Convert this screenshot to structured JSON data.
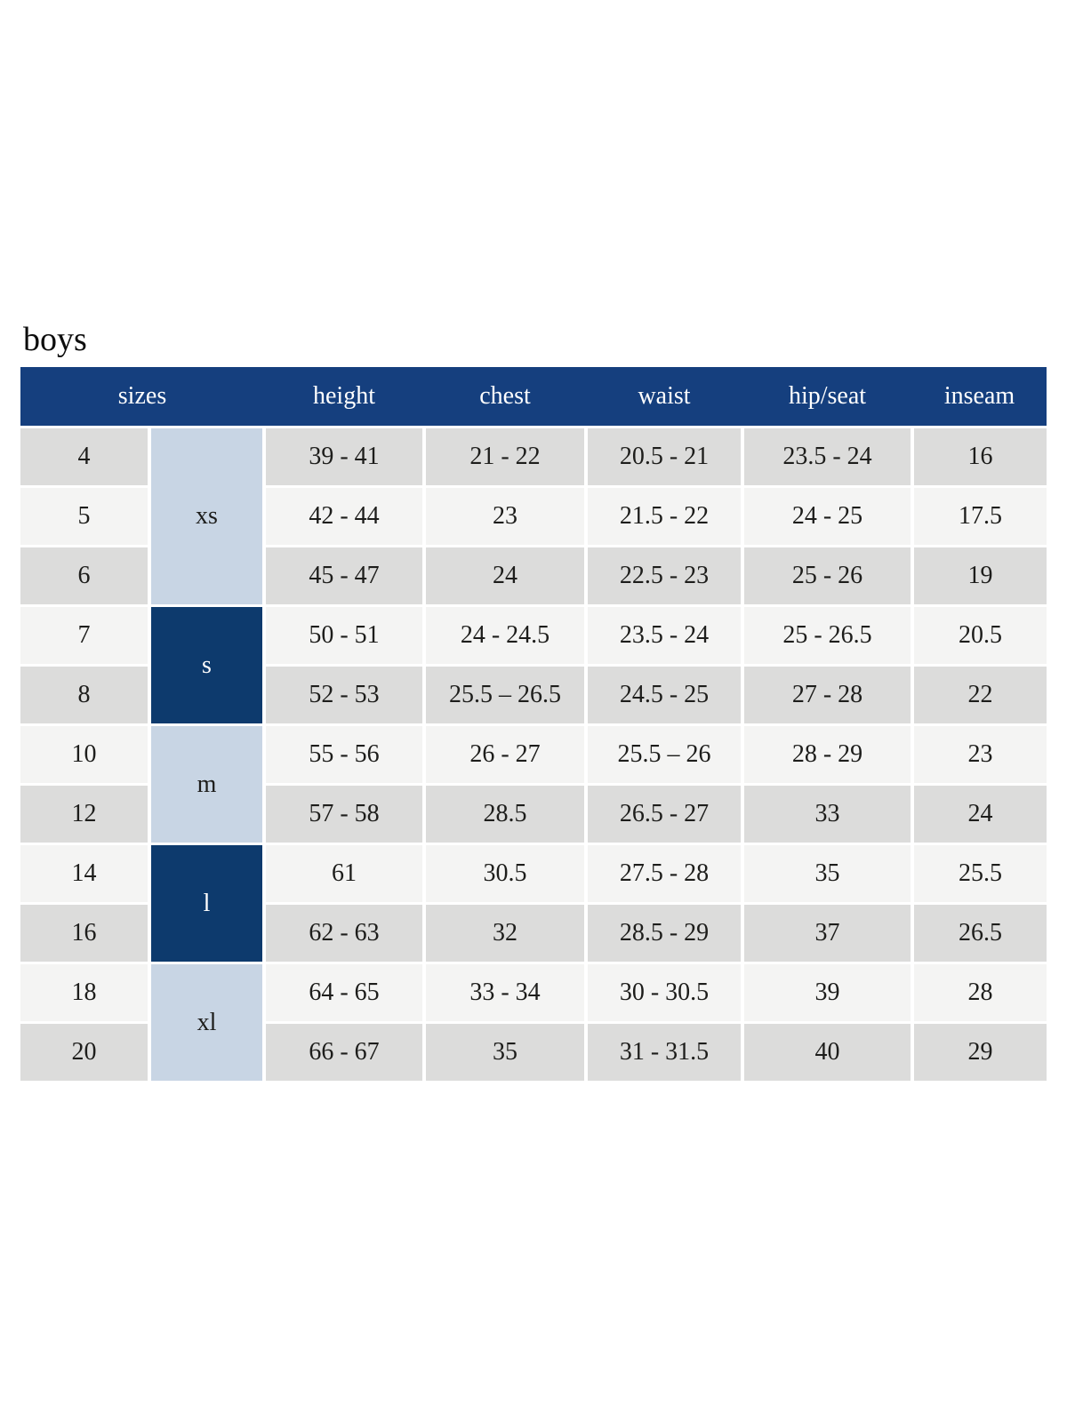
{
  "title": "boys",
  "colors": {
    "header_bg": "#153f7e",
    "group_dark_bg": "#0d3a6d",
    "group_light_bg": "#c8d5e4",
    "row_gray_bg": "#dcdcdb",
    "row_light_bg": "#f4f4f3",
    "header_text": "#ffffff",
    "body_text": "#1d1d1b"
  },
  "table": {
    "headers": [
      "sizes",
      "height",
      "chest",
      "waist",
      "hip/seat",
      "inseam"
    ],
    "groups": [
      {
        "label": "xs",
        "rows": [
          "4",
          "5",
          "6"
        ],
        "tone": "light"
      },
      {
        "label": "s",
        "rows": [
          "7",
          "8"
        ],
        "tone": "dark"
      },
      {
        "label": "m",
        "rows": [
          "10",
          "12"
        ],
        "tone": "light"
      },
      {
        "label": "l",
        "rows": [
          "14",
          "16"
        ],
        "tone": "dark"
      },
      {
        "label": "xl",
        "rows": [
          "18",
          "20"
        ],
        "tone": "light"
      }
    ],
    "rows": [
      {
        "size": "4",
        "height": "39 - 41",
        "chest": "21 - 22",
        "waist": "20.5 - 21",
        "hip_seat": "23.5 - 24",
        "inseam": "16"
      },
      {
        "size": "5",
        "height": "42 - 44",
        "chest": "23",
        "waist": "21.5 - 22",
        "hip_seat": "24 - 25",
        "inseam": "17.5"
      },
      {
        "size": "6",
        "height": "45 - 47",
        "chest": "24",
        "waist": "22.5 - 23",
        "hip_seat": "25 - 26",
        "inseam": "19"
      },
      {
        "size": "7",
        "height": "50 - 51",
        "chest": "24 - 24.5",
        "waist": "23.5 - 24",
        "hip_seat": "25 - 26.5",
        "inseam": "20.5"
      },
      {
        "size": "8",
        "height": "52 - 53",
        "chest": "25.5 – 26.5",
        "waist": "24.5 - 25",
        "hip_seat": "27 - 28",
        "inseam": "22"
      },
      {
        "size": "10",
        "height": "55 - 56",
        "chest": "26 - 27",
        "waist": "25.5 – 26",
        "hip_seat": "28 - 29",
        "inseam": "23"
      },
      {
        "size": "12",
        "height": "57 - 58",
        "chest": "28.5",
        "waist": "26.5 - 27",
        "hip_seat": "33",
        "inseam": "24"
      },
      {
        "size": "14",
        "height": "61",
        "chest": "30.5",
        "waist": "27.5 - 28",
        "hip_seat": "35",
        "inseam": "25.5"
      },
      {
        "size": "16",
        "height": "62 - 63",
        "chest": "32",
        "waist": "28.5 - 29",
        "hip_seat": "37",
        "inseam": "26.5"
      },
      {
        "size": "18",
        "height": "64 - 65",
        "chest": "33 - 34",
        "waist": "30 - 30.5",
        "hip_seat": "39",
        "inseam": "28"
      },
      {
        "size": "20",
        "height": "66 - 67",
        "chest": "35",
        "waist": "31 - 31.5",
        "hip_seat": "40",
        "inseam": "29"
      }
    ]
  }
}
